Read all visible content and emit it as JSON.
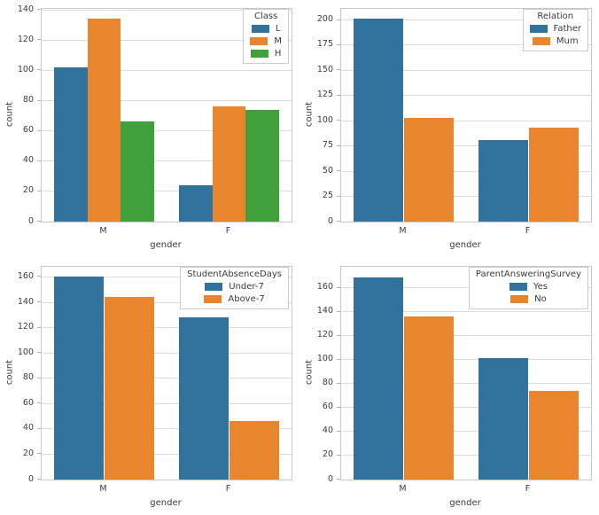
{
  "figure": {
    "description": "2x2 grid of grouped bar charts of student counts by gender",
    "background_color": "#ffffff",
    "grid_color": "#dcdcdc",
    "axes_edge_color": "#c9c9c9",
    "text_color": "#3b3b3b"
  },
  "chart_data": [
    {
      "type": "bar",
      "name": "class-by-gender",
      "categories": [
        "M",
        "F"
      ],
      "series": [
        {
          "name": "L",
          "color": "#31739C",
          "values": [
            102,
            24
          ]
        },
        {
          "name": "M",
          "color": "#E9862D",
          "values": [
            134,
            76
          ]
        },
        {
          "name": "H",
          "color": "#3FA03C",
          "values": [
            66,
            74
          ]
        }
      ],
      "legend_title": "Class",
      "legend_position": "upper right",
      "xlabel": "gender",
      "ylabel": "count",
      "ylim": [
        0,
        140.7
      ],
      "yticks": [
        0,
        20,
        40,
        60,
        80,
        100,
        120,
        140
      ],
      "grid": true
    },
    {
      "type": "bar",
      "name": "relation-by-gender",
      "categories": [
        "M",
        "F"
      ],
      "series": [
        {
          "name": "Father",
          "color": "#31739C",
          "values": [
            201,
            81
          ]
        },
        {
          "name": "Mum",
          "color": "#E9862D",
          "values": [
            103,
            93
          ]
        }
      ],
      "legend_title": "Relation",
      "legend_position": "upper right",
      "xlabel": "gender",
      "ylabel": "count",
      "ylim": [
        0,
        211
      ],
      "yticks": [
        0,
        25,
        50,
        75,
        100,
        125,
        150,
        175,
        200
      ],
      "grid": true
    },
    {
      "type": "bar",
      "name": "student-absence-days-by-gender",
      "categories": [
        "M",
        "F"
      ],
      "series": [
        {
          "name": "Under-7",
          "color": "#31739C",
          "values": [
            160,
            128
          ]
        },
        {
          "name": "Above-7",
          "color": "#E9862D",
          "values": [
            144,
            46
          ]
        }
      ],
      "legend_title": "StudentAbsenceDays",
      "legend_position": "upper right",
      "xlabel": "gender",
      "ylabel": "count",
      "ylim": [
        0,
        168
      ],
      "yticks": [
        0,
        20,
        40,
        60,
        80,
        100,
        120,
        140,
        160
      ],
      "grid": true
    },
    {
      "type": "bar",
      "name": "parent-answering-survey-by-gender",
      "categories": [
        "M",
        "F"
      ],
      "series": [
        {
          "name": "Yes",
          "color": "#31739C",
          "values": [
            169,
            101
          ]
        },
        {
          "name": "No",
          "color": "#E9862D",
          "values": [
            136,
            74
          ]
        }
      ],
      "legend_title": "ParentAnsweringSurvey",
      "legend_position": "upper right",
      "xlabel": "gender",
      "ylabel": "count",
      "ylim": [
        0,
        177.5
      ],
      "yticks": [
        0,
        20,
        40,
        60,
        80,
        100,
        120,
        140,
        160
      ],
      "grid": true
    }
  ]
}
